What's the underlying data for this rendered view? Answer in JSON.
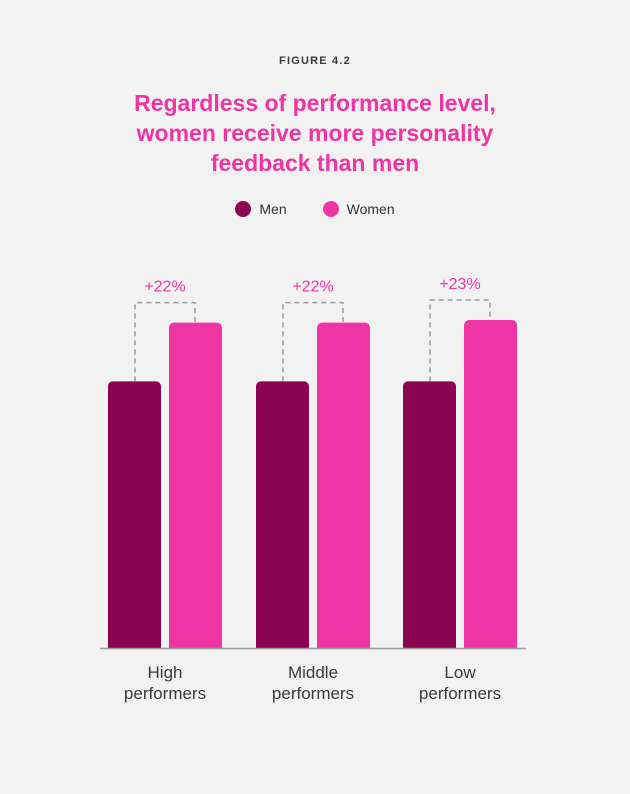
{
  "figure_label": "FIGURE 4.2",
  "title_lines": [
    "Regardless of performance level,",
    "women receive more personality",
    "feedback than men"
  ],
  "colors": {
    "men": "#8c0452",
    "women": "#ef35a3",
    "bracket": "#9a9a9a",
    "axis": "#9a9a9a"
  },
  "chart_data": {
    "type": "bar",
    "title": "Regardless of performance level, women receive more personality feedback than men",
    "categories": [
      "High performers",
      "Middle performers",
      "Low performers"
    ],
    "category_lines": [
      [
        "High",
        "performers"
      ],
      [
        "Middle",
        "performers"
      ],
      [
        "Low",
        "performers"
      ]
    ],
    "series": [
      {
        "name": "Men",
        "values": [
          1.0,
          1.0,
          1.0
        ]
      },
      {
        "name": "Women",
        "values": [
          1.22,
          1.22,
          1.23
        ]
      }
    ],
    "annotations": [
      "+22%",
      "+22%",
      "+23%"
    ],
    "ylim": [
      0,
      1.25
    ],
    "legend": "top-center",
    "grid": false
  }
}
